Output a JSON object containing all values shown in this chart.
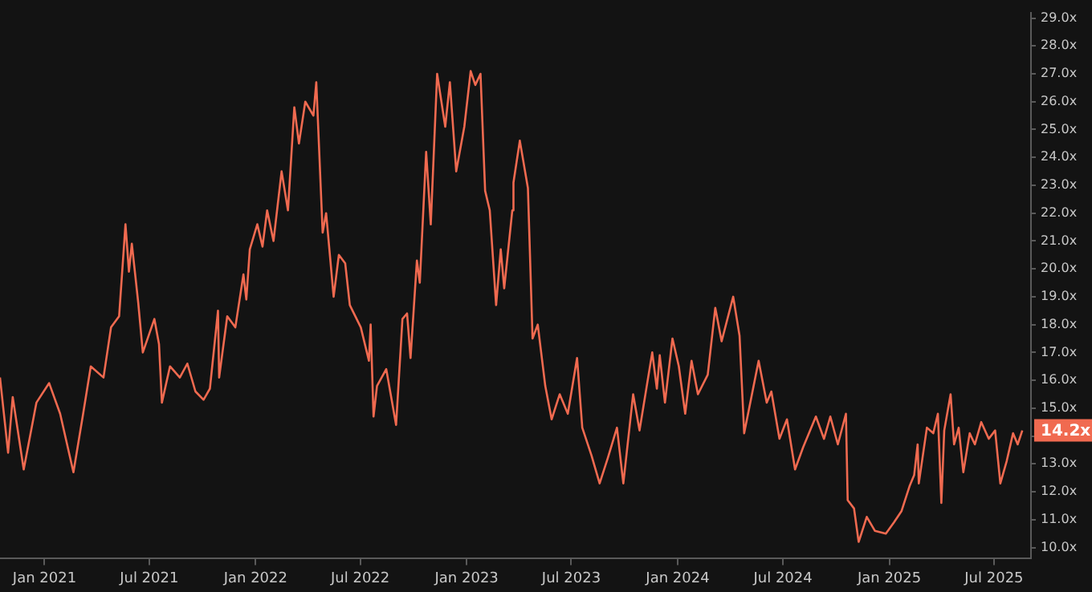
{
  "chart_data": {
    "type": "line",
    "x": [
      "2020-10-16",
      "2020-10-30",
      "2020-11-07",
      "2020-11-26",
      "2020-12-18",
      "2021-01-09",
      "2021-01-28",
      "2021-02-20",
      "2021-03-08",
      "2021-03-22",
      "2021-04-13",
      "2021-04-26",
      "2021-05-10",
      "2021-05-21",
      "2021-05-27",
      "2021-06-01",
      "2021-06-12",
      "2021-06-20",
      "2021-07-10",
      "2021-07-18",
      "2021-07-23",
      "2021-08-06",
      "2021-08-23",
      "2021-09-05",
      "2021-09-19",
      "2021-10-03",
      "2021-10-14",
      "2021-10-28",
      "2021-10-30",
      "2021-11-13",
      "2021-11-27",
      "2021-12-11",
      "2021-12-16",
      "2021-12-22",
      "2022-01-04",
      "2022-01-13",
      "2022-01-21",
      "2022-02-01",
      "2022-02-15",
      "2022-02-26",
      "2022-03-09",
      "2022-03-17",
      "2022-03-28",
      "2022-04-11",
      "2022-04-16",
      "2022-04-27",
      "2022-05-03",
      "2022-05-16",
      "2022-05-25",
      "2022-06-05",
      "2022-06-13",
      "2022-07-02",
      "2022-07-16",
      "2022-07-19",
      "2022-07-24",
      "2022-07-30",
      "2022-08-15",
      "2022-09-01",
      "2022-09-12",
      "2022-09-20",
      "2022-09-26",
      "2022-10-07",
      "2022-10-12",
      "2022-10-23",
      "2022-10-31",
      "2022-11-11",
      "2022-11-25",
      "2022-12-03",
      "2022-12-14",
      "2022-12-28",
      "2023-01-08",
      "2023-01-16",
      "2023-01-25",
      "2023-02-02",
      "2023-02-10",
      "2023-02-21",
      "2023-03-01",
      "2023-03-07",
      "2023-03-21",
      "2023-03-23",
      "2023-04-03",
      "2023-04-17",
      "2023-04-25",
      "2023-05-04",
      "2023-05-17",
      "2023-05-28",
      "2023-06-11",
      "2023-06-25",
      "2023-07-11",
      "2023-07-20",
      "2023-08-05",
      "2023-08-19",
      "2023-09-02",
      "2023-09-18",
      "2023-09-29",
      "2023-10-16",
      "2023-10-27",
      "2023-11-18",
      "2023-11-26",
      "2023-12-01",
      "2023-12-10",
      "2023-12-23",
      "2024-01-03",
      "2024-01-14",
      "2024-01-25",
      "2024-02-05",
      "2024-02-22",
      "2024-03-06",
      "2024-03-17",
      "2024-04-06",
      "2024-04-17",
      "2024-04-25",
      "2024-05-20",
      "2024-06-03",
      "2024-06-11",
      "2024-06-25",
      "2024-07-08",
      "2024-07-22",
      "2024-08-05",
      "2024-08-27",
      "2024-09-10",
      "2024-09-21",
      "2024-10-04",
      "2024-10-18",
      "2024-10-21",
      "2024-11-01",
      "2024-11-09",
      "2024-11-23",
      "2024-12-07",
      "2024-12-26",
      "2025-01-09",
      "2025-01-22",
      "2025-02-05",
      "2025-02-13",
      "2025-02-19",
      "2025-02-21",
      "2025-03-07",
      "2025-03-18",
      "2025-03-26",
      "2025-04-01",
      "2025-04-06",
      "2025-04-17",
      "2025-04-23",
      "2025-05-01",
      "2025-05-09",
      "2025-05-20",
      "2025-05-29",
      "2025-06-09",
      "2025-06-22",
      "2025-07-03",
      "2025-07-12",
      "2025-07-23",
      "2025-08-03",
      "2025-08-11",
      "2025-08-19"
    ],
    "series": [
      {
        "color": "#f06a50",
        "values": [
          16.1,
          13.4,
          15.4,
          12.8,
          15.2,
          15.9,
          14.8,
          12.7,
          14.7,
          16.5,
          16.1,
          17.9,
          18.3,
          21.6,
          19.9,
          20.9,
          18.8,
          17.0,
          18.2,
          17.3,
          15.2,
          16.5,
          16.1,
          16.6,
          15.6,
          15.3,
          15.7,
          18.5,
          16.1,
          18.3,
          17.9,
          19.8,
          18.9,
          20.7,
          21.6,
          20.8,
          22.1,
          21.0,
          23.5,
          22.1,
          25.8,
          24.5,
          26.0,
          25.5,
          26.7,
          21.3,
          22.0,
          19.0,
          20.5,
          20.2,
          18.7,
          17.9,
          16.7,
          18.0,
          14.7,
          15.8,
          16.4,
          14.4,
          18.2,
          18.4,
          16.8,
          20.3,
          19.5,
          24.2,
          21.6,
          27.0,
          25.1,
          26.7,
          23.5,
          25.1,
          27.1,
          26.6,
          27.0,
          22.8,
          22.1,
          18.7,
          20.7,
          19.3,
          22.1,
          23.1,
          24.6,
          22.9,
          17.5,
          18.0,
          15.8,
          14.6,
          15.5,
          14.8,
          16.8,
          14.3,
          13.3,
          12.3,
          13.2,
          14.3,
          12.3,
          15.5,
          14.2,
          17.0,
          15.7,
          16.9,
          15.2,
          17.5,
          16.5,
          14.8,
          16.7,
          15.5,
          16.2,
          18.6,
          17.4,
          19.0,
          17.6,
          14.1,
          16.7,
          15.2,
          15.6,
          13.9,
          14.6,
          12.8,
          13.6,
          14.7,
          13.9,
          14.7,
          13.7,
          14.8,
          11.7,
          11.4,
          10.2,
          11.1,
          10.6,
          10.5,
          10.9,
          11.3,
          12.2,
          12.6,
          13.7,
          12.3,
          14.3,
          14.1,
          14.8,
          11.6,
          14.2,
          15.5,
          13.7,
          14.3,
          12.7,
          14.1,
          13.7,
          14.5,
          13.9,
          14.2,
          12.3,
          13.1,
          14.1,
          13.7,
          14.2
        ]
      }
    ],
    "xlim": [
      "2020-10-16",
      "2025-09-03"
    ],
    "xticks": [
      {
        "value": "2021-01",
        "label": "Jan 2021"
      },
      {
        "value": "2021-07",
        "label": "Jul 2021"
      },
      {
        "value": "2022-01",
        "label": "Jan 2022"
      },
      {
        "value": "2022-07",
        "label": "Jul 2022"
      },
      {
        "value": "2023-01",
        "label": "Jan 2023"
      },
      {
        "value": "2023-07",
        "label": "Jul 2023"
      },
      {
        "value": "2024-01",
        "label": "Jan 2024"
      },
      {
        "value": "2024-07",
        "label": "Jul 2024"
      },
      {
        "value": "2025-01",
        "label": "Jan 2025"
      },
      {
        "value": "2025-07",
        "label": "Jul 2025"
      }
    ],
    "ylim": [
      9.6,
      29.2
    ],
    "yticks": [
      {
        "value": 10,
        "label": "10.0x"
      },
      {
        "value": 11,
        "label": "11.0x"
      },
      {
        "value": 12,
        "label": "12.0x"
      },
      {
        "value": 13,
        "label": "13.0x"
      },
      {
        "value": 14,
        "label": null
      },
      {
        "value": 15,
        "label": "15.0x"
      },
      {
        "value": 16,
        "label": "16.0x"
      },
      {
        "value": 17,
        "label": "17.0x"
      },
      {
        "value": 18,
        "label": "18.0x"
      },
      {
        "value": 19,
        "label": "19.0x"
      },
      {
        "value": 20,
        "label": "20.0x"
      },
      {
        "value": 21,
        "label": "21.0x"
      },
      {
        "value": 22,
        "label": "22.0x"
      },
      {
        "value": 23,
        "label": "23.0x"
      },
      {
        "value": 24,
        "label": "24.0x"
      },
      {
        "value": 25,
        "label": "25.0x"
      },
      {
        "value": 26,
        "label": "26.0x"
      },
      {
        "value": 27,
        "label": "27.0x"
      },
      {
        "value": 28,
        "label": "28.0x"
      },
      {
        "value": 29,
        "label": "29.0x"
      }
    ],
    "annotations": [
      {
        "text": "14.2x",
        "x": "2025-08-19",
        "y": 14.2
      }
    ],
    "grid": false,
    "legend": false,
    "marker": "none",
    "line_style": "solid"
  }
}
